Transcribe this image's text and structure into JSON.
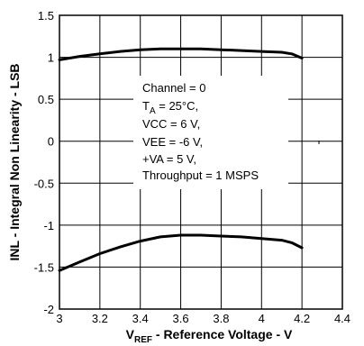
{
  "chart_data": {
    "type": "line",
    "xlabel": {
      "main": "V",
      "sub": "REF",
      "rest": " - Reference Voltage - V"
    },
    "ylabel": "INL - Integral Non Linearity - LSB",
    "xlim": [
      3,
      4.4
    ],
    "ylim": [
      -2,
      1.5
    ],
    "xticks": [
      3,
      3.2,
      3.4,
      3.6,
      3.8,
      4,
      4.2,
      4.4
    ],
    "xtick_labels": [
      "3",
      "3.2",
      "3.4",
      "3.6",
      "3.8",
      "4",
      "4.2",
      "4.4"
    ],
    "yticks": [
      -2,
      -1.5,
      -1,
      -0.5,
      0,
      0.5,
      1,
      1.5
    ],
    "ytick_labels": [
      "-2",
      "-1.5",
      "-1",
      "-0.5",
      "0",
      "0.5",
      "1",
      "1.5"
    ],
    "grid": true,
    "series": [
      {
        "x": [
          3.0,
          3.1,
          3.2,
          3.3,
          3.4,
          3.5,
          3.6,
          3.7,
          3.8,
          3.9,
          4.0,
          4.1,
          4.15,
          4.2
        ],
        "y": [
          0.97,
          1.01,
          1.04,
          1.07,
          1.09,
          1.1,
          1.1,
          1.1,
          1.09,
          1.08,
          1.07,
          1.06,
          1.04,
          0.99
        ]
      },
      {
        "x": [
          3.0,
          3.1,
          3.2,
          3.3,
          3.4,
          3.5,
          3.6,
          3.7,
          3.8,
          3.9,
          4.0,
          4.1,
          4.15,
          4.2
        ],
        "y": [
          -1.54,
          -1.44,
          -1.34,
          -1.26,
          -1.19,
          -1.14,
          -1.12,
          -1.12,
          -1.13,
          -1.14,
          -1.16,
          -1.18,
          -1.21,
          -1.27
        ]
      }
    ],
    "annotation": {
      "lines": [
        {
          "main": "Channel = 0"
        },
        {
          "main": "T",
          "sub": "A",
          "rest": " = 25°C,"
        },
        {
          "main": "VCC = 6 V,"
        },
        {
          "main": "VEE = -6 V,"
        },
        {
          "main": "+VA = 5 V,"
        },
        {
          "main": "Throughput = 1 MSPS"
        }
      ]
    }
  }
}
